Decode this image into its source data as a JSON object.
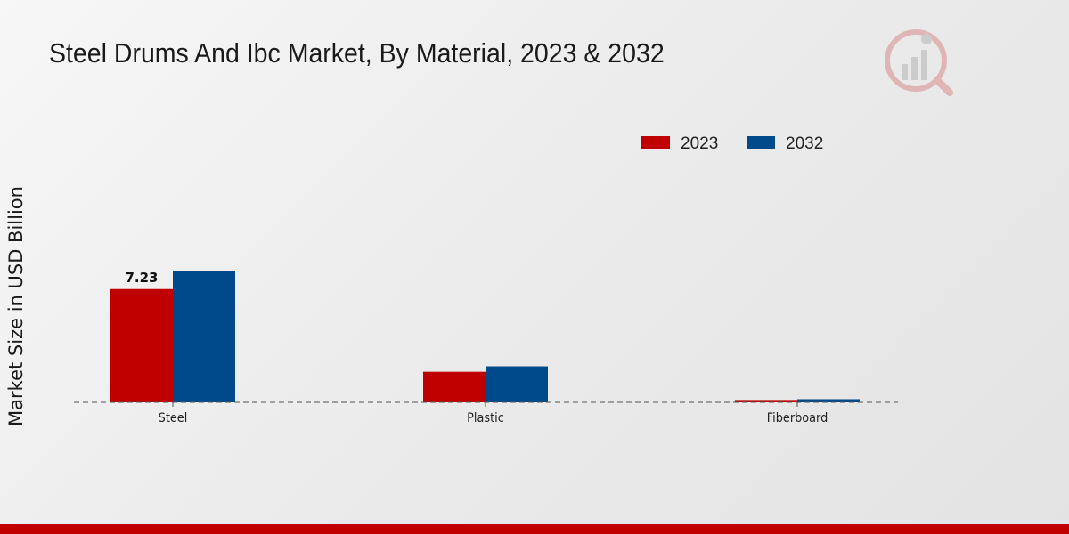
{
  "chart_data": {
    "type": "bar",
    "title": "Steel Drums And Ibc Market, By Material, 2023 & 2032",
    "xlabel": "",
    "ylabel": "Market Size in USD Billion",
    "categories": [
      "Steel",
      "Plastic",
      "Fiberboard"
    ],
    "series": [
      {
        "name": "2023",
        "color": "#c00000",
        "values": [
          7.23,
          1.95,
          0.15
        ]
      },
      {
        "name": "2032",
        "color": "#004a8c",
        "values": [
          8.4,
          2.3,
          0.2
        ]
      }
    ],
    "data_labels": [
      {
        "series": 0,
        "index": 0,
        "text": "7.23"
      }
    ],
    "ylim": [
      0,
      20
    ],
    "grid": false,
    "legend_position": "top-right"
  },
  "brand": {
    "accent": "#c00000"
  }
}
